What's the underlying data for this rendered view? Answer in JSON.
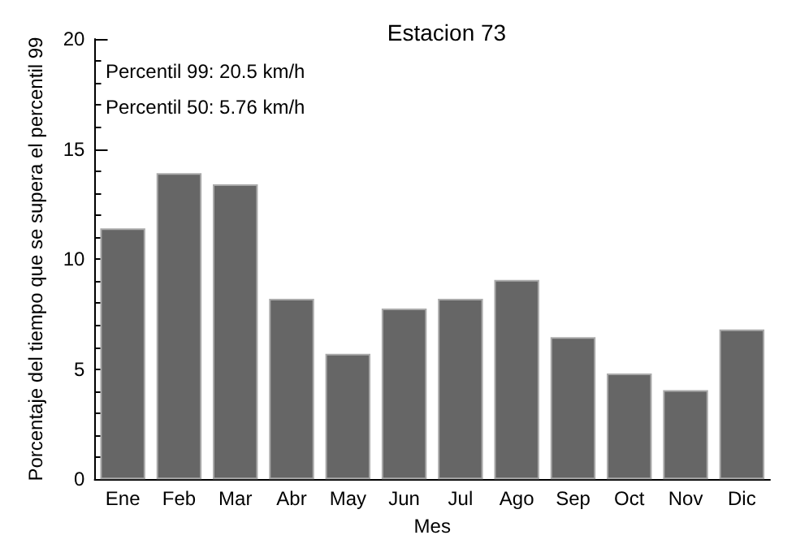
{
  "chart_data": {
    "type": "bar",
    "title": "Estacion 73",
    "xlabel": "Mes",
    "ylabel": "Porcentaje del tiempo que se supera el percentil 99",
    "categories": [
      "Ene",
      "Feb",
      "Mar",
      "Abr",
      "May",
      "Jun",
      "Jul",
      "Ago",
      "Sep",
      "Oct",
      "Nov",
      "Dic"
    ],
    "values": [
      11.4,
      13.9,
      13.4,
      8.2,
      5.7,
      7.75,
      8.2,
      9.05,
      6.45,
      4.8,
      4.05,
      6.8
    ],
    "color": "#666666",
    "ylim": [
      0,
      20
    ],
    "yticks": [
      0,
      5,
      10,
      15,
      20
    ],
    "grid": false,
    "annotations": [
      "Percentil 99: 20.5 km/h",
      "Percentil 50: 5.76 km/h"
    ]
  }
}
